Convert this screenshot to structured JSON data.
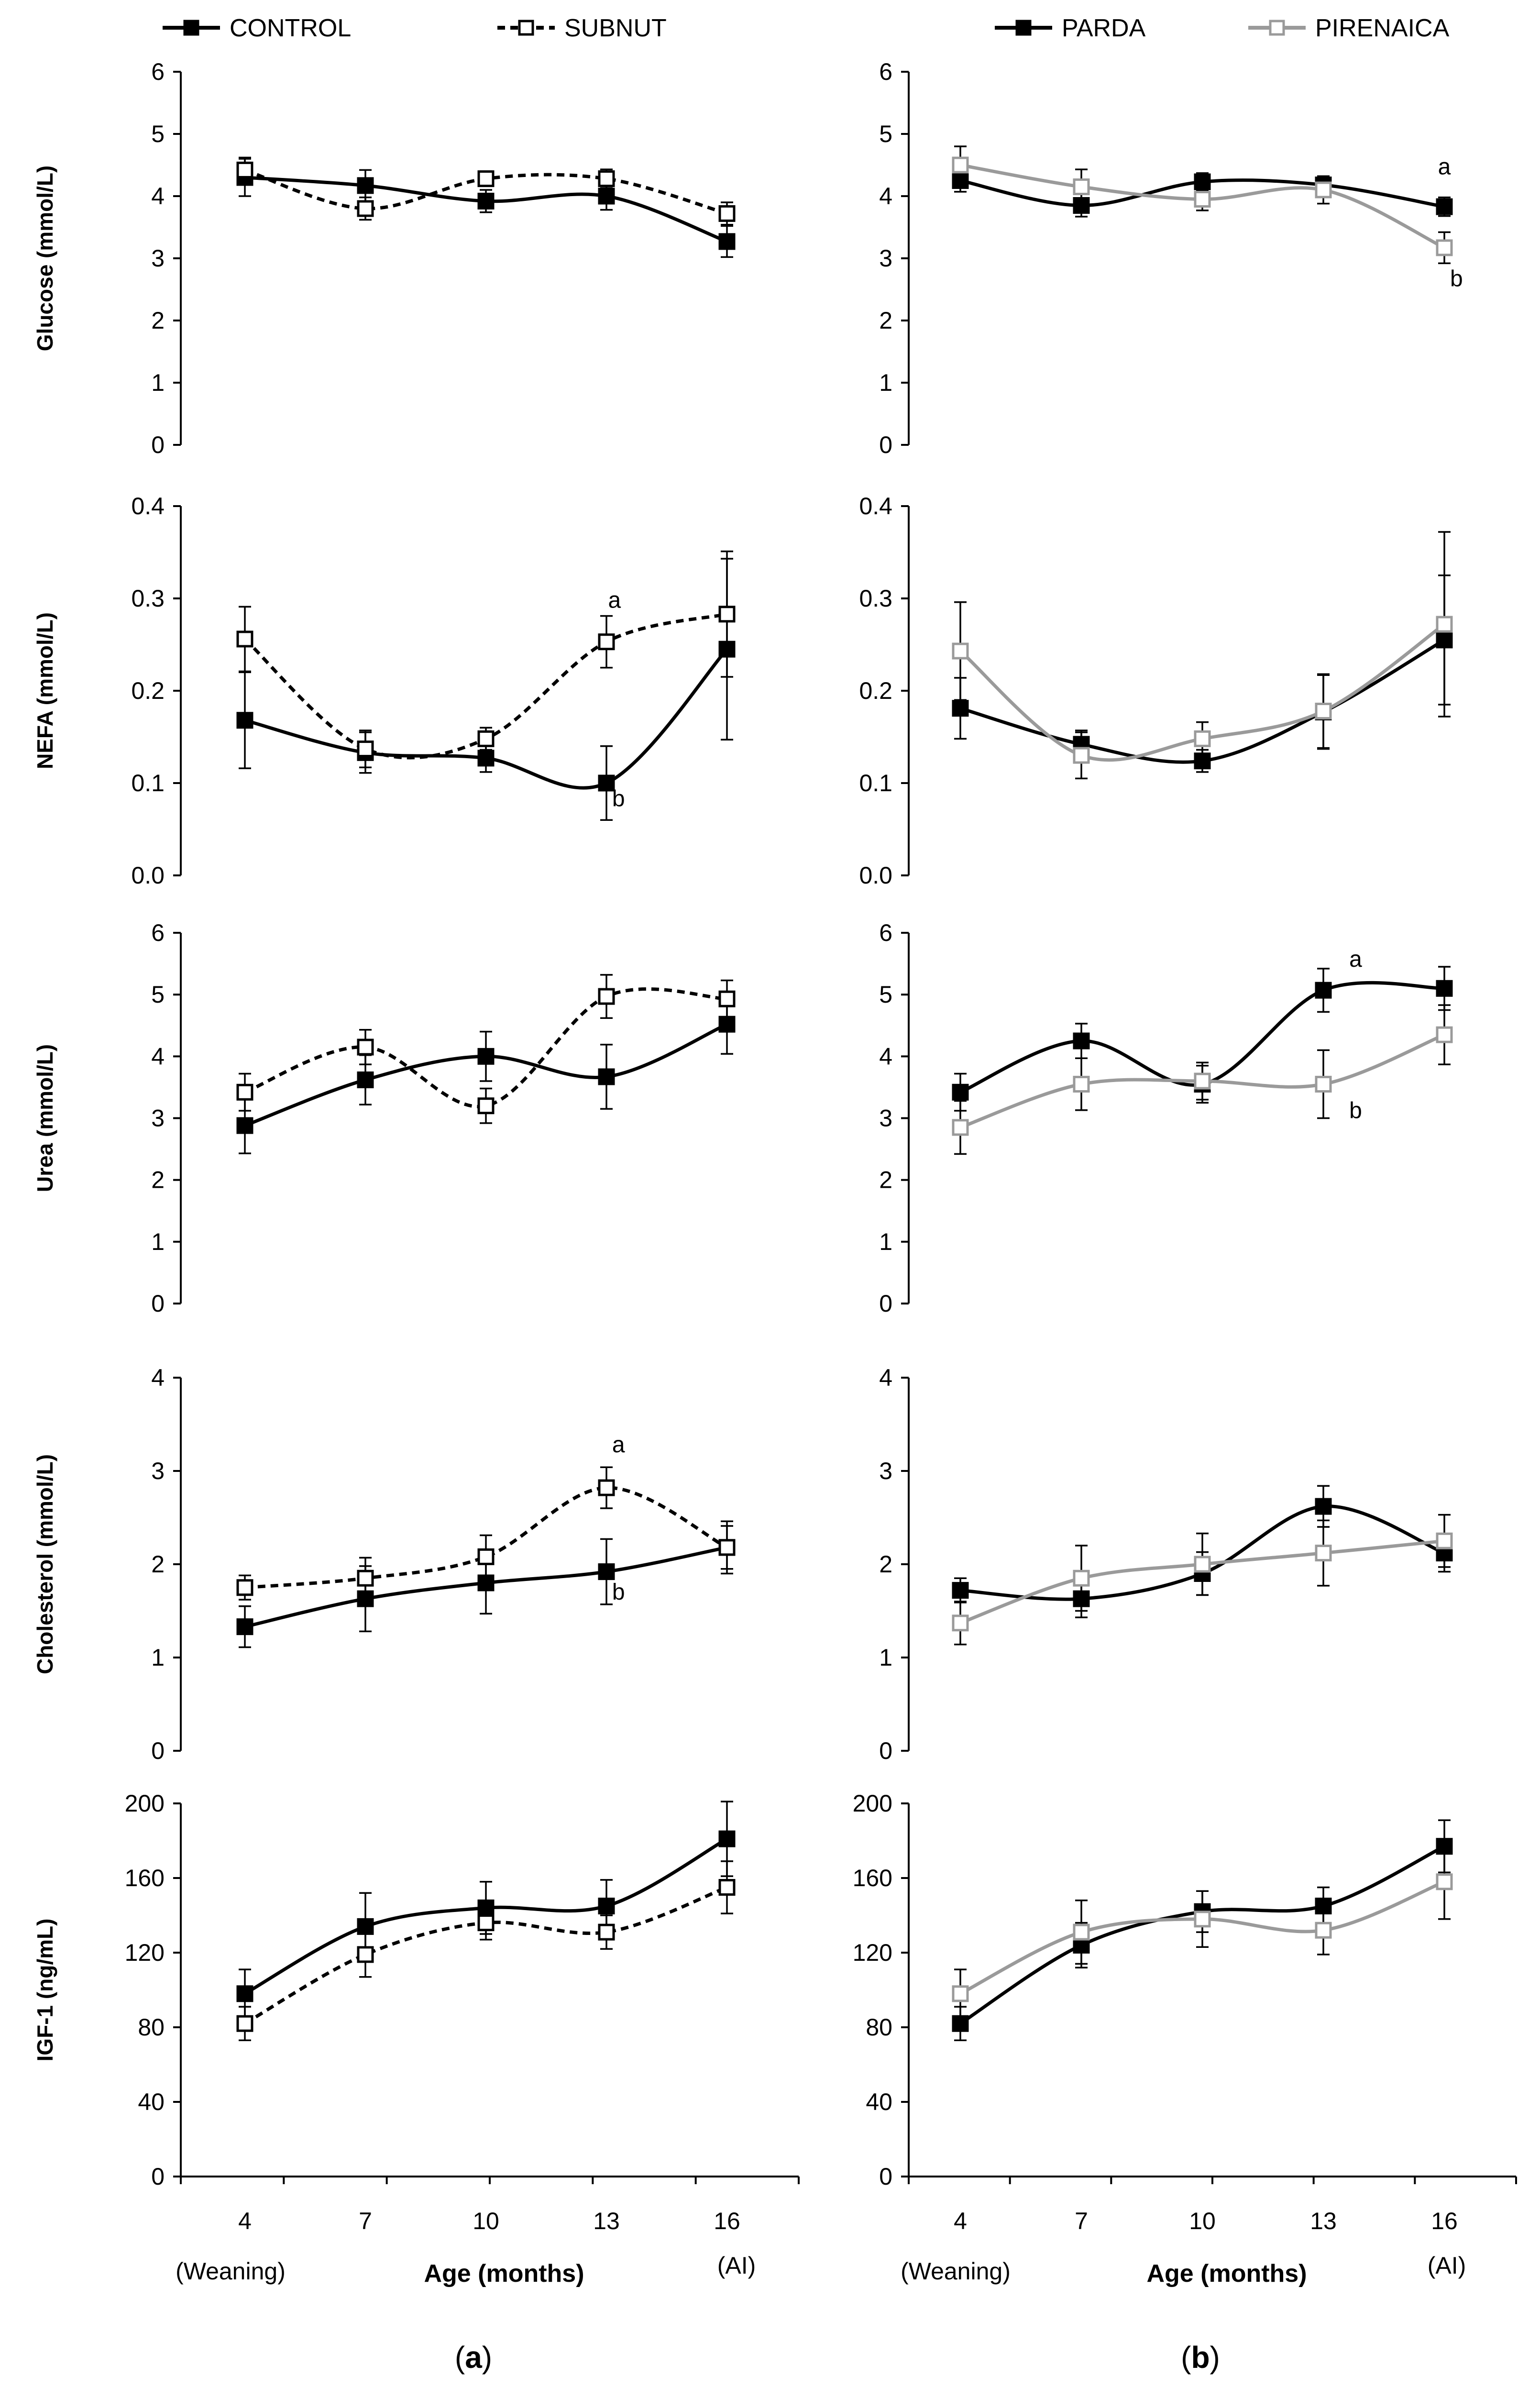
{
  "legend_left": [
    {
      "name": "CONTROL",
      "color": "#000000",
      "dashed": true,
      "filled": true,
      "dash_override": false
    },
    {
      "name": "SUBNUT",
      "color": "#000000",
      "dashed": true,
      "filled": false
    }
  ],
  "legend_right": [
    {
      "name": "PARDA",
      "color": "#000000",
      "dashed": false,
      "filled": true
    },
    {
      "name": "PIRENAICA",
      "color": "#999999",
      "dashed": false,
      "filled": false
    }
  ],
  "x_axis": {
    "ticks": [
      "4",
      "7",
      "10",
      "13",
      "16"
    ],
    "label": "Age (months)",
    "note_left": "(Weaning)",
    "note_right": "(AI)"
  },
  "panel_labels": [
    {
      "open": "(",
      "letter": "a",
      "close": ")"
    },
    {
      "open": "(",
      "letter": "b",
      "close": ")"
    }
  ],
  "chart_data": [
    {
      "id": "a1",
      "column": "a",
      "type": "line",
      "ylabel": "Glucose (mmol/L)",
      "ylim": [
        0,
        6
      ],
      "ytick_labels": [
        "0",
        "1",
        "2",
        "3",
        "4",
        "5",
        "6"
      ],
      "x": [
        4,
        7,
        10,
        13,
        16
      ],
      "series": [
        {
          "name": "CONTROL",
          "values": [
            4.3,
            4.17,
            3.92,
            4.0,
            3.27
          ],
          "errors": [
            0.3,
            0.25,
            0.18,
            0.22,
            0.25
          ]
        },
        {
          "name": "SUBNUT",
          "values": [
            4.42,
            3.8,
            4.28,
            4.28,
            3.72
          ],
          "errors": [
            0.2,
            0.18,
            0.12,
            0.15,
            0.18
          ]
        }
      ],
      "annotations": []
    },
    {
      "id": "b1",
      "column": "b",
      "type": "line",
      "ylabel": "",
      "ylim": [
        0,
        6
      ],
      "ytick_labels": [
        "0",
        "1",
        "2",
        "3",
        "4",
        "5",
        "6"
      ],
      "x": [
        4,
        7,
        10,
        13,
        16
      ],
      "series": [
        {
          "name": "PARDA",
          "values": [
            4.25,
            3.85,
            4.23,
            4.18,
            3.83
          ],
          "errors": [
            0.18,
            0.18,
            0.14,
            0.14,
            0.15
          ]
        },
        {
          "name": "PIRENAICA",
          "values": [
            4.5,
            4.15,
            3.95,
            4.1,
            3.17
          ],
          "errors": [
            0.3,
            0.28,
            0.18,
            0.22,
            0.25
          ]
        }
      ],
      "annotations": [
        {
          "text": "a",
          "x": 16,
          "y": 4.35
        },
        {
          "text": "b",
          "x": 16.3,
          "y": 2.55
        }
      ]
    },
    {
      "id": "a2",
      "column": "a",
      "type": "line",
      "ylabel": "NEFA (mmol/L)",
      "ylim": [
        0,
        0.4
      ],
      "ytick_labels": [
        "0.0",
        "0.1",
        "0.2",
        "0.3",
        "0.4"
      ],
      "x": [
        4,
        7,
        10,
        13,
        16
      ],
      "series": [
        {
          "name": "CONTROL",
          "values": [
            0.168,
            0.133,
            0.127,
            0.1,
            0.245
          ],
          "errors": [
            0.052,
            0.022,
            0.015,
            0.04,
            0.098
          ]
        },
        {
          "name": "SUBNUT",
          "values": [
            0.256,
            0.137,
            0.148,
            0.253,
            0.283
          ],
          "errors": [
            0.035,
            0.02,
            0.012,
            0.028,
            0.068
          ]
        }
      ],
      "annotations": [
        {
          "text": "a",
          "x": 13.2,
          "y": 0.29
        },
        {
          "text": "b",
          "x": 13.3,
          "y": 0.075
        }
      ]
    },
    {
      "id": "b2",
      "column": "b",
      "type": "line",
      "ylabel": "",
      "ylim": [
        0,
        0.4
      ],
      "ytick_labels": [
        "0.0",
        "0.1",
        "0.2",
        "0.3",
        "0.4"
      ],
      "x": [
        4,
        7,
        10,
        13,
        16
      ],
      "series": [
        {
          "name": "PARDA",
          "values": [
            0.181,
            0.142,
            0.124,
            0.177,
            0.255
          ],
          "errors": [
            0.033,
            0.015,
            0.012,
            0.04,
            0.07
          ]
        },
        {
          "name": "PIRENAICA",
          "values": [
            0.243,
            0.13,
            0.148,
            0.178,
            0.272
          ],
          "errors": [
            0.053,
            0.025,
            0.018,
            0.04,
            0.1
          ]
        }
      ],
      "annotations": []
    },
    {
      "id": "a3",
      "column": "a",
      "type": "line",
      "ylabel": "Urea (mmol/L)",
      "ylim": [
        0,
        6
      ],
      "ytick_labels": [
        "0",
        "1",
        "2",
        "3",
        "4",
        "5",
        "6"
      ],
      "x": [
        4,
        7,
        10,
        13,
        16
      ],
      "series": [
        {
          "name": "CONTROL",
          "values": [
            2.88,
            3.62,
            4.0,
            3.67,
            4.52
          ],
          "errors": [
            0.45,
            0.4,
            0.4,
            0.52,
            0.48
          ]
        },
        {
          "name": "SUBNUT",
          "values": [
            3.42,
            4.15,
            3.2,
            4.97,
            4.93
          ],
          "errors": [
            0.3,
            0.28,
            0.28,
            0.35,
            0.3
          ]
        }
      ],
      "annotations": []
    },
    {
      "id": "b3",
      "column": "b",
      "type": "line",
      "ylabel": "",
      "ylim": [
        0,
        6
      ],
      "ytick_labels": [
        "0",
        "1",
        "2",
        "3",
        "4",
        "5",
        "6"
      ],
      "x": [
        4,
        7,
        10,
        13,
        16
      ],
      "series": [
        {
          "name": "PARDA",
          "values": [
            3.42,
            4.25,
            3.55,
            5.07,
            5.1
          ],
          "errors": [
            0.3,
            0.28,
            0.3,
            0.35,
            0.35
          ]
        },
        {
          "name": "PIRENAICA",
          "values": [
            2.85,
            3.55,
            3.6,
            3.55,
            4.35
          ],
          "errors": [
            0.43,
            0.42,
            0.3,
            0.55,
            0.48
          ]
        }
      ],
      "annotations": [
        {
          "text": "a",
          "x": 13.8,
          "y": 5.45
        },
        {
          "text": "b",
          "x": 13.8,
          "y": 3.0
        }
      ]
    },
    {
      "id": "a4",
      "column": "a",
      "type": "line",
      "ylabel": "Cholesterol (mmol/L)",
      "ylim": [
        0,
        4
      ],
      "ytick_labels": [
        "0",
        "1",
        "2",
        "3",
        "4"
      ],
      "x": [
        4,
        7,
        10,
        13,
        16
      ],
      "series": [
        {
          "name": "CONTROL",
          "values": [
            1.33,
            1.63,
            1.8,
            1.92,
            2.18
          ],
          "errors": [
            0.22,
            0.35,
            0.33,
            0.35,
            0.28
          ]
        },
        {
          "name": "SUBNUT",
          "values": [
            1.75,
            1.85,
            2.08,
            2.82,
            2.18
          ],
          "errors": [
            0.13,
            0.22,
            0.23,
            0.22,
            0.23
          ]
        }
      ],
      "annotations": [
        {
          "text": "a",
          "x": 13.3,
          "y": 3.2
        },
        {
          "text": "b",
          "x": 13.3,
          "y": 1.62
        }
      ]
    },
    {
      "id": "b4",
      "column": "b",
      "type": "line",
      "ylabel": "",
      "ylim": [
        0,
        4
      ],
      "ytick_labels": [
        "0",
        "1",
        "2",
        "3",
        "4"
      ],
      "x": [
        4,
        7,
        10,
        13,
        16
      ],
      "series": [
        {
          "name": "PARDA",
          "values": [
            1.72,
            1.63,
            1.9,
            2.62,
            2.12
          ],
          "errors": [
            0.13,
            0.2,
            0.23,
            0.22,
            0.2
          ]
        },
        {
          "name": "PIRENAICA",
          "values": [
            1.37,
            1.85,
            2.0,
            2.12,
            2.25
          ],
          "errors": [
            0.23,
            0.35,
            0.33,
            0.35,
            0.28
          ]
        }
      ],
      "annotations": []
    },
    {
      "id": "a5",
      "column": "a",
      "type": "line",
      "ylabel": "IGF-1 (ng/mL)",
      "ylim": [
        0,
        200
      ],
      "ytick_labels": [
        "0",
        "40",
        "80",
        "120",
        "160",
        "200"
      ],
      "x": [
        4,
        7,
        10,
        13,
        16
      ],
      "series": [
        {
          "name": "CONTROL",
          "values": [
            98,
            134,
            144,
            145,
            181
          ],
          "errors": [
            13,
            18,
            14,
            14,
            20
          ]
        },
        {
          "name": "SUBNUT",
          "values": [
            82,
            119,
            136,
            131,
            155
          ],
          "errors": [
            9,
            12,
            9,
            9,
            14
          ]
        }
      ],
      "annotations": []
    },
    {
      "id": "b5",
      "column": "b",
      "type": "line",
      "ylabel": "",
      "ylim": [
        0,
        200
      ],
      "ytick_labels": [
        "0",
        "40",
        "80",
        "120",
        "160",
        "200"
      ],
      "x": [
        4,
        7,
        10,
        13,
        16
      ],
      "series": [
        {
          "name": "PARDA",
          "values": [
            82,
            124,
            142,
            145,
            177
          ],
          "errors": [
            9,
            12,
            11,
            10,
            14
          ]
        },
        {
          "name": "PIRENAICA",
          "values": [
            98,
            131,
            138,
            132,
            158
          ],
          "errors": [
            13,
            17,
            15,
            13,
            20
          ]
        }
      ],
      "annotations": []
    }
  ]
}
